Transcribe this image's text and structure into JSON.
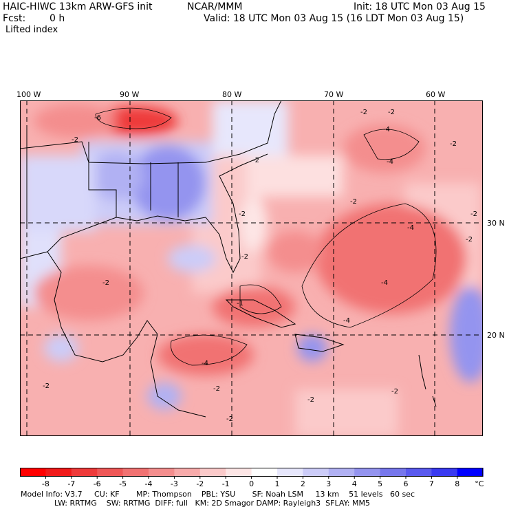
{
  "header": {
    "model_title": "HAIC-HIWC 13km ARW-GFS init",
    "org": "NCAR/MMM",
    "init": "Init: 18 UTC Mon 03 Aug 15",
    "fcst_label": "Fcst:",
    "fcst_value": "0 h",
    "valid": "Valid: 18 UTC Mon 03 Aug 15 (16 LDT Mon 03 Aug 15)",
    "field": "Lifted index"
  },
  "map": {
    "longitude_labels": [
      "100 W",
      "90 W",
      "80 W",
      "70 W",
      "60 W"
    ],
    "latitude_labels": [
      "30 N",
      "20 N"
    ],
    "contour_labels": [
      "-2",
      "-4",
      "-6",
      "-1"
    ]
  },
  "colorbar": {
    "ticks": [
      "-8",
      "-7",
      "-6",
      "-5",
      "-4",
      "-3",
      "-2",
      "-1",
      "0",
      "1",
      "2",
      "3",
      "4",
      "5",
      "6",
      "7",
      "8"
    ],
    "unit": "°C",
    "colors": [
      "#ff0000",
      "#f01a1a",
      "#ee3a3a",
      "#ef5757",
      "#f17272",
      "#f48e8e",
      "#f8abab",
      "#fbcaca",
      "#fde6e6",
      "#ffffff",
      "#e7e7fc",
      "#ccccf8",
      "#b1b1f3",
      "#9494ef",
      "#7777ec",
      "#5a5aee",
      "#3a3af0",
      "#0000ff"
    ]
  },
  "footer": {
    "line1": "Model Info: V3.7     CU: KF       MP: Thompson    PBL: YSU       SF: Noah LSM     13 km    51 levels   60 sec",
    "line2": "              LW: RRTMG    SW: RRTMG  DIFF: full   KM: 2D Smagor DAMP: Rayleigh3  SFLAY: MM5"
  }
}
